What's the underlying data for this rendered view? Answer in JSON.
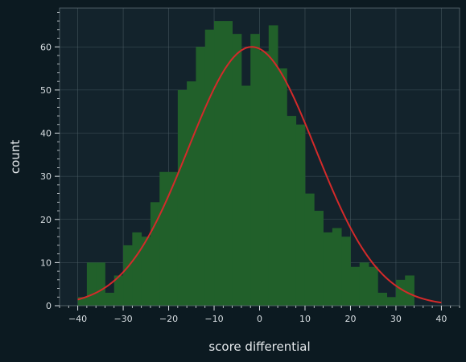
{
  "chart_data": {
    "type": "bar",
    "title": "",
    "xlabel": "score differential",
    "ylabel": "count",
    "xlim": [
      -44,
      44
    ],
    "ylim": [
      0,
      69
    ],
    "x_ticks": [
      -40,
      -30,
      -20,
      -10,
      0,
      10,
      20,
      30,
      40
    ],
    "y_ticks": [
      0,
      10,
      20,
      30,
      40,
      50,
      60
    ],
    "grid": true,
    "legend": "none",
    "bin_width": 2,
    "bin_start": -40,
    "bar_counts": [
      2,
      10,
      10,
      3,
      7,
      14,
      17,
      16,
      24,
      31,
      31,
      50,
      52,
      60,
      64,
      66,
      66,
      63,
      51,
      63,
      59,
      65,
      55,
      44,
      42,
      26,
      22,
      17,
      18,
      16,
      9,
      10,
      9,
      3,
      2,
      6,
      7
    ],
    "fit_curve": {
      "type": "gaussian",
      "peak": 60,
      "mean": -1.7,
      "sd": 14,
      "x_range": [
        -40,
        40
      ]
    },
    "colors": {
      "background": "#0c1a21",
      "plot_area": "#13232c",
      "bars": "#21602a",
      "fit_line": "#d42a2a",
      "grid": "#4f6068",
      "text": "#d9dfe3"
    }
  }
}
